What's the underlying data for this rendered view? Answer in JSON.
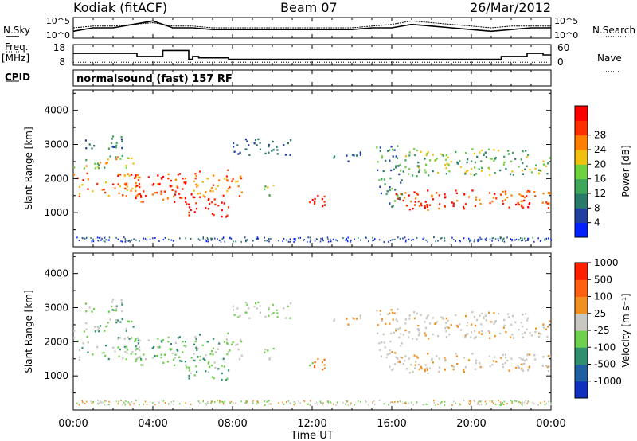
{
  "header": {
    "station": "Kodiak (fitACF)",
    "beam": "Beam 07",
    "date": "26/Mar/2012"
  },
  "side_labels": {
    "nsky": "N.Sky",
    "freq_top": "Freq.",
    "freq_unit": "[MHz]",
    "cpid": "CPID",
    "nsearch": "N.Search",
    "nave": "Nave"
  },
  "cpid_text": "normalsound (fast) 157 RF",
  "chart_data": [
    {
      "type": "line",
      "panel": "noise",
      "left_ticks": [
        "10^5",
        "10^0"
      ],
      "right_ticks": [
        "10^5",
        "10^0"
      ],
      "series": [
        {
          "name": "N.Sky",
          "x_hours": [
            0,
            1,
            2,
            3,
            4,
            5,
            6,
            7,
            8,
            9,
            10,
            11,
            12,
            13,
            14,
            15,
            16,
            17,
            18,
            19,
            20,
            21,
            22,
            23,
            24
          ],
          "values": [
            2,
            3,
            3,
            4,
            5,
            3,
            3,
            2.5,
            2.5,
            2.5,
            2.5,
            2.5,
            2.5,
            2.5,
            2.5,
            3,
            3,
            4,
            3.5,
            3,
            2.5,
            2,
            2.5,
            3,
            3
          ]
        },
        {
          "name": "N.Search",
          "x_hours": [
            0,
            1,
            2,
            3,
            4,
            5,
            6,
            7,
            8,
            9,
            10,
            11,
            12,
            13,
            14,
            15,
            16,
            17,
            18,
            19,
            20,
            21,
            22,
            23,
            24
          ],
          "values": [
            3,
            3.5,
            3.5,
            4,
            4.5,
            3.5,
            3.5,
            3,
            3,
            3,
            3,
            3,
            3,
            3,
            3,
            3.5,
            4,
            5,
            4.5,
            4,
            3.5,
            3,
            3.5,
            3.5,
            3.5
          ]
        }
      ]
    },
    {
      "type": "line",
      "panel": "frequency",
      "left_ticks": [
        "18",
        "8"
      ],
      "right_ticks": [
        "60",
        "0"
      ],
      "series": [
        {
          "name": "Freq.",
          "x_hours": [
            0,
            3.2,
            3.2,
            4.5,
            4.5,
            5.8,
            5.8,
            6,
            6,
            6.3,
            6.3,
            7.8,
            7.8,
            21.5,
            21.5,
            22.8,
            22.8,
            23.6,
            23.6,
            24
          ],
          "values": [
            14,
            14,
            12,
            12,
            16,
            16,
            10,
            10,
            12,
            12,
            11,
            11,
            10,
            10,
            12,
            12,
            14,
            14,
            13,
            13
          ]
        },
        {
          "name": "Nave",
          "x_hours": [
            0,
            24
          ],
          "values": [
            8,
            8
          ]
        }
      ]
    },
    {
      "type": "heatmap",
      "panel": "power",
      "ylabel": "Slant Range [km]",
      "y_ticks": [
        1000,
        2000,
        3000,
        4000
      ],
      "colorbar_label": "Power [dB]",
      "colorbar_ticks": [
        "4",
        "8",
        "12",
        "16",
        "20",
        "24",
        "28"
      ],
      "colors": [
        "#0020ff",
        "#2040a0",
        "#2a7a6a",
        "#3fa65a",
        "#6fd040",
        "#f0c010",
        "#ff8000",
        "#ff3000",
        "#ff0000"
      ]
    },
    {
      "type": "heatmap",
      "panel": "velocity",
      "ylabel": "Slant Range [km]",
      "y_ticks": [
        1000,
        2000,
        3000,
        4000
      ],
      "colorbar_label": "Velocity [m s^-1]",
      "colorbar_ticks": [
        "1000",
        "500",
        "100",
        "25",
        "-25",
        "-100",
        "-500",
        "-1000"
      ],
      "colors": [
        "#1030c0",
        "#2060a0",
        "#2f8f6f",
        "#6fd050",
        "#c8c8c0",
        "#f09020",
        "#ff6010",
        "#ff2000"
      ]
    }
  ],
  "time_axis": {
    "label": "Time UT",
    "ticks": [
      "00:00",
      "04:00",
      "08:00",
      "12:00",
      "16:00",
      "20:00",
      "00:00"
    ]
  }
}
